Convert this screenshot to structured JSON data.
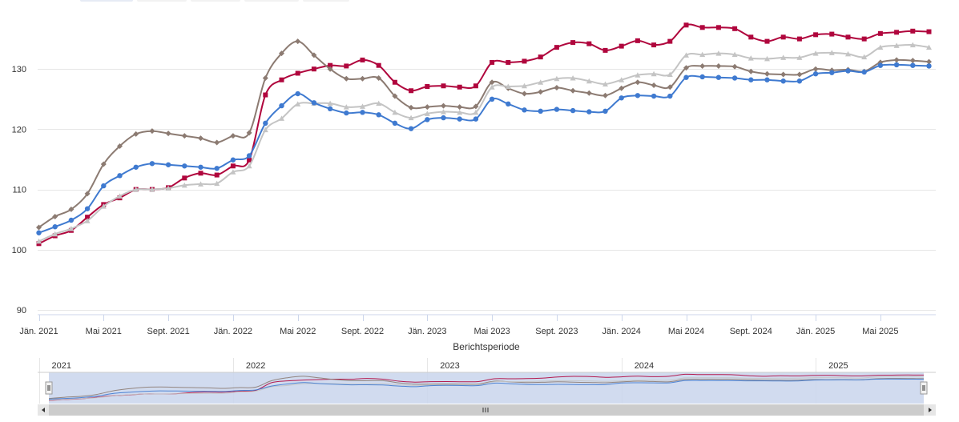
{
  "chart_data": {
    "type": "line",
    "xlabel": "Berichtsperiode",
    "ylim": [
      90,
      138
    ],
    "yticks": [
      90,
      100,
      110,
      120,
      130
    ],
    "grid": true,
    "x_tick_labels": [
      "Jän. 2021",
      "Mai 2021",
      "Sept. 2021",
      "Jän. 2022",
      "Mai 2022",
      "Sept. 2022",
      "Jän. 2023",
      "Mai 2023",
      "Sept. 2023",
      "Jän. 2024",
      "Mai 2024",
      "Sept. 2024",
      "Jän. 2025",
      "Mai 2025"
    ],
    "x_tick_index": [
      0,
      4,
      8,
      12,
      16,
      20,
      24,
      28,
      32,
      36,
      40,
      44,
      48,
      52
    ],
    "x_months": [
      "2021-01",
      "2021-02",
      "2021-03",
      "2021-04",
      "2021-05",
      "2021-06",
      "2021-07",
      "2021-08",
      "2021-09",
      "2021-10",
      "2021-11",
      "2021-12",
      "2022-01",
      "2022-02",
      "2022-03",
      "2022-04",
      "2022-05",
      "2022-06",
      "2022-07",
      "2022-08",
      "2022-09",
      "2022-10",
      "2022-11",
      "2022-12",
      "2023-01",
      "2023-02",
      "2023-03",
      "2023-04",
      "2023-05",
      "2023-06",
      "2023-07",
      "2023-08",
      "2023-09",
      "2023-10",
      "2023-11",
      "2023-12",
      "2024-01",
      "2024-02",
      "2024-03",
      "2024-04",
      "2024-05",
      "2024-06",
      "2024-07",
      "2024-08",
      "2024-09",
      "2024-10",
      "2024-11",
      "2024-12",
      "2025-01",
      "2025-02",
      "2025-03",
      "2025-04",
      "2025-05",
      "2025-06",
      "2025-07",
      "2025-08"
    ],
    "series": [
      {
        "color": "#b0063d",
        "marker": "square",
        "values": [
          101.0,
          102.3,
          103.2,
          105.4,
          107.5,
          108.6,
          110.0,
          110.0,
          110.3,
          111.9,
          112.7,
          112.4,
          113.9,
          114.9,
          125.7,
          128.2,
          129.3,
          130.0,
          130.6,
          130.5,
          131.5,
          130.6,
          127.8,
          126.4,
          127.1,
          127.2,
          127.0,
          127.2,
          131.1,
          131.1,
          131.3,
          132.0,
          133.6,
          134.4,
          134.2,
          133.1,
          133.8,
          134.7,
          134.0,
          134.6,
          137.3,
          136.9,
          136.9,
          136.7,
          135.3,
          134.6,
          135.3,
          135.0,
          135.7,
          135.8,
          135.3,
          135.0,
          135.9,
          136.1,
          136.3,
          136.2
        ]
      },
      {
        "color": "#8c7b72",
        "marker": "diamond",
        "values": [
          103.7,
          105.5,
          106.7,
          109.3,
          114.2,
          117.2,
          119.2,
          119.7,
          119.3,
          118.9,
          118.5,
          117.8,
          118.9,
          119.4,
          128.5,
          132.6,
          134.6,
          132.3,
          130.0,
          128.4,
          128.4,
          128.5,
          125.5,
          123.6,
          123.7,
          123.9,
          123.7,
          123.8,
          127.8,
          126.8,
          125.9,
          126.2,
          126.9,
          126.4,
          126.0,
          125.6,
          126.8,
          127.8,
          127.3,
          127.0,
          130.2,
          130.5,
          130.5,
          130.4,
          129.6,
          129.2,
          129.1,
          129.1,
          130.0,
          129.8,
          129.9,
          129.6,
          131.1,
          131.5,
          131.4,
          131.2
        ]
      },
      {
        "color": "#c4c4c4",
        "marker": "triangle",
        "values": [
          101.4,
          102.6,
          103.5,
          104.8,
          107.2,
          108.9,
          110.0,
          110.0,
          110.2,
          110.7,
          110.9,
          111.0,
          112.9,
          113.9,
          119.9,
          121.8,
          124.2,
          124.3,
          124.3,
          123.7,
          123.8,
          124.3,
          122.8,
          121.9,
          122.6,
          122.9,
          122.8,
          122.8,
          127.0,
          127.1,
          127.2,
          127.8,
          128.4,
          128.5,
          128.0,
          127.5,
          128.2,
          129.0,
          129.2,
          129.1,
          132.3,
          132.4,
          132.6,
          132.4,
          131.8,
          131.7,
          131.9,
          131.9,
          132.6,
          132.7,
          132.5,
          132.0,
          133.6,
          133.9,
          134.0,
          133.6
        ]
      },
      {
        "color": "#3f7ad0",
        "marker": "circle",
        "values": [
          102.8,
          103.8,
          104.9,
          106.8,
          110.6,
          112.3,
          113.7,
          114.3,
          114.1,
          113.9,
          113.7,
          113.5,
          114.9,
          115.6,
          121.0,
          123.9,
          125.9,
          124.4,
          123.4,
          122.7,
          122.8,
          122.4,
          121.0,
          120.1,
          121.6,
          121.9,
          121.7,
          121.7,
          125.0,
          124.2,
          123.2,
          123.0,
          123.3,
          123.1,
          122.9,
          123.0,
          125.2,
          125.6,
          125.5,
          125.5,
          128.6,
          128.7,
          128.6,
          128.5,
          128.2,
          128.2,
          128.0,
          128.0,
          129.2,
          129.4,
          129.7,
          129.5,
          130.6,
          130.7,
          130.6,
          130.5
        ]
      }
    ],
    "navigator": {
      "year_labels": [
        "2021",
        "2022",
        "2023",
        "2024",
        "2025"
      ]
    }
  }
}
